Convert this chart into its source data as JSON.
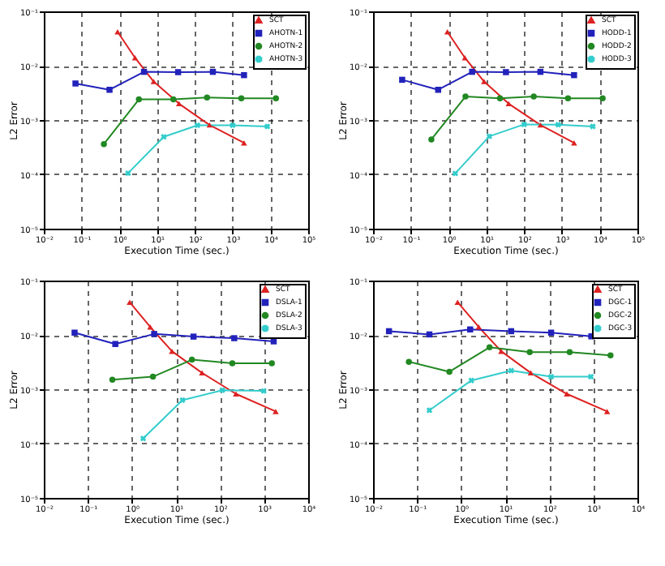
{
  "chart_data": [
    {
      "type": "line",
      "xlabel": "Execution Time (sec.)",
      "ylabel": "L2 Error",
      "log": "xy",
      "grid": true,
      "legend": "top right",
      "xlim": [
        0.01,
        100000
      ],
      "xticks": [
        {
          "value": 0.01,
          "label": "10⁻²"
        },
        {
          "value": 0.1,
          "label": "10⁻¹"
        },
        {
          "value": 1,
          "label": "10⁰"
        },
        {
          "value": 10,
          "label": "10¹"
        },
        {
          "value": 100,
          "label": "10²"
        },
        {
          "value": 1000,
          "label": "10³"
        },
        {
          "value": 10000,
          "label": "10⁴"
        },
        {
          "value": 100000,
          "label": "10⁵"
        }
      ],
      "ylim": [
        1e-05,
        0.1
      ],
      "yticks": [
        {
          "value": 1e-05,
          "label": "10⁻⁵"
        },
        {
          "value": 0.0001,
          "label": "10⁻⁴"
        },
        {
          "value": 0.001,
          "label": "10⁻³"
        },
        {
          "value": 0.01,
          "label": "10⁻²"
        },
        {
          "value": 0.1,
          "label": "10⁻¹"
        }
      ],
      "series": [
        {
          "name": "SCT",
          "color": "#dd2222",
          "marker": "triangle",
          "x": [
            0.9,
            2.6,
            8.1,
            38,
            245,
            2000
          ],
          "values": [
            0.042,
            0.014,
            0.0051,
            0.002,
            0.00081,
            0.00038
          ]
        },
        {
          "name": "AHOTN-1",
          "color": "#2222bb",
          "marker": "square",
          "x": [
            0.069,
            0.55,
            4.5,
            36,
            300,
            2000
          ],
          "values": [
            0.0047,
            0.0036,
            0.0077,
            0.0076,
            0.0077,
            0.0067
          ]
        },
        {
          "name": "AHOTN-2",
          "color": "#228822",
          "marker": "circle",
          "x": [
            0.39,
            3.3,
            27,
            210,
            1700,
            14000
          ],
          "values": [
            0.00036,
            0.0024,
            0.0024,
            0.0026,
            0.0025,
            0.0025
          ]
        },
        {
          "name": "AHOTN-3",
          "color": "#33cccc",
          "marker": "cross",
          "x": [
            1.7,
            15,
            117,
            1000,
            8300
          ],
          "values": [
            0.000105,
            0.00049,
            0.0008,
            0.0008,
            0.00076
          ]
        }
      ]
    },
    {
      "type": "line",
      "xlabel": "Execution Time (sec.)",
      "ylabel": "L2 Error",
      "log": "xy",
      "grid": true,
      "legend": "top right",
      "xlim": [
        0.01,
        100000
      ],
      "xticks": [
        {
          "value": 0.01,
          "label": "10⁻²"
        },
        {
          "value": 0.1,
          "label": "10⁻¹"
        },
        {
          "value": 1,
          "label": "10⁰"
        },
        {
          "value": 10,
          "label": "10¹"
        },
        {
          "value": 100,
          "label": "10²"
        },
        {
          "value": 1000,
          "label": "10³"
        },
        {
          "value": 10000,
          "label": "10⁴"
        },
        {
          "value": 100000,
          "label": "10⁵"
        }
      ],
      "ylim": [
        1e-05,
        0.1
      ],
      "yticks": [
        {
          "value": 1e-05,
          "label": "10⁻⁵"
        },
        {
          "value": 0.0001,
          "label": "10⁻⁴"
        },
        {
          "value": 0.001,
          "label": "10⁻³"
        },
        {
          "value": 0.01,
          "label": "10⁻²"
        },
        {
          "value": 0.1,
          "label": "10⁻¹"
        }
      ],
      "series": [
        {
          "name": "SCT",
          "color": "#dd2222",
          "marker": "triangle",
          "x": [
            0.93,
            2.7,
            8.7,
            39,
            270,
            2100
          ],
          "values": [
            0.042,
            0.014,
            0.0051,
            0.002,
            0.00081,
            0.00038
          ]
        },
        {
          "name": "HODD-1",
          "color": "#2222bb",
          "marker": "square",
          "x": [
            0.059,
            0.53,
            4.2,
            33,
            270,
            2100
          ],
          "values": [
            0.0055,
            0.0036,
            0.0077,
            0.0076,
            0.0077,
            0.0067
          ]
        },
        {
          "name": "HODD-2",
          "color": "#228822",
          "marker": "circle",
          "x": [
            0.35,
            2.8,
            23,
            180,
            1450,
            12000
          ],
          "values": [
            0.00044,
            0.0027,
            0.0025,
            0.0027,
            0.0025,
            0.0025
          ]
        },
        {
          "name": "HODD-3",
          "color": "#33cccc",
          "marker": "cross",
          "x": [
            1.5,
            12,
            100,
            800,
            6600
          ],
          "values": [
            0.000104,
            0.0005,
            0.00083,
            0.00082,
            0.00076
          ]
        }
      ]
    },
    {
      "type": "line",
      "xlabel": "Execution Time (sec.)",
      "ylabel": "L2 Error",
      "log": "xy",
      "grid": true,
      "legend": "top right",
      "xlim": [
        0.01,
        10000
      ],
      "xticks": [
        {
          "value": 0.01,
          "label": "10⁻²"
        },
        {
          "value": 0.1,
          "label": "10⁻¹"
        },
        {
          "value": 1,
          "label": "10⁰"
        },
        {
          "value": 10,
          "label": "10¹"
        },
        {
          "value": 100,
          "label": "10²"
        },
        {
          "value": 1000,
          "label": "10³"
        },
        {
          "value": 10000,
          "label": "10⁴"
        }
      ],
      "ylim": [
        1e-05,
        0.1
      ],
      "yticks": [
        {
          "value": 1e-05,
          "label": "10⁻⁵"
        },
        {
          "value": 0.0001,
          "label": "10⁻⁴"
        },
        {
          "value": 0.001,
          "label": "10⁻³"
        },
        {
          "value": 0.01,
          "label": "10⁻²"
        },
        {
          "value": 0.1,
          "label": "10⁻¹"
        }
      ],
      "series": [
        {
          "name": "SCT",
          "color": "#dd2222",
          "marker": "triangle",
          "x": [
            0.89,
            2.6,
            8.1,
            39,
            230,
            1830
          ],
          "values": [
            0.04,
            0.014,
            0.005,
            0.002,
            0.00082,
            0.00039
          ]
        },
        {
          "name": "DSLA-1",
          "color": "#2222bb",
          "marker": "square",
          "x": [
            0.05,
            0.42,
            3.2,
            25,
            210,
            1650
          ],
          "values": [
            0.011,
            0.0068,
            0.0104,
            0.0093,
            0.0087,
            0.0076
          ]
        },
        {
          "name": "DSLA-2",
          "color": "#228822",
          "marker": "circle",
          "x": [
            0.36,
            3,
            23,
            190,
            1500
          ],
          "values": [
            0.0015,
            0.0017,
            0.0035,
            0.003,
            0.003
          ]
        },
        {
          "name": "DSLA-3",
          "color": "#33cccc",
          "marker": "cross",
          "x": [
            1.8,
            14,
            113,
            980
          ],
          "values": [
            0.000124,
            0.00063,
            0.00096,
            0.00093
          ]
        }
      ]
    },
    {
      "type": "line",
      "xlabel": "Execution Time (sec.)",
      "ylabel": "L2 Error",
      "log": "xy",
      "grid": true,
      "legend": "top right",
      "xlim": [
        0.01,
        10000
      ],
      "xticks": [
        {
          "value": 0.01,
          "label": "10⁻²"
        },
        {
          "value": 0.1,
          "label": "10⁻¹"
        },
        {
          "value": 1,
          "label": "10⁰"
        },
        {
          "value": 10,
          "label": "10¹"
        },
        {
          "value": 100,
          "label": "10²"
        },
        {
          "value": 1000,
          "label": "10³"
        },
        {
          "value": 10000,
          "label": "10⁴"
        }
      ],
      "ylim": [
        1e-05,
        0.1
      ],
      "yticks": [
        {
          "value": 1e-05,
          "label": "10⁻⁵"
        },
        {
          "value": 0.0001,
          "label": "10⁻⁴"
        },
        {
          "value": 0.001,
          "label": "10⁻³"
        },
        {
          "value": 0.01,
          "label": "10⁻²"
        },
        {
          "value": 0.1,
          "label": "10⁻¹"
        }
      ],
      "series": [
        {
          "name": "SCT",
          "color": "#dd2222",
          "marker": "triangle",
          "x": [
            0.83,
            2.5,
            8.1,
            38,
            250,
            2050
          ],
          "values": [
            0.04,
            0.014,
            0.005,
            0.002,
            0.00082,
            0.00039
          ]
        },
        {
          "name": "DGC-1",
          "color": "#2222bb",
          "marker": "square",
          "x": [
            0.023,
            0.19,
            1.6,
            13.6,
            110,
            900
          ],
          "values": [
            0.0117,
            0.0102,
            0.0126,
            0.0117,
            0.011,
            0.0094
          ]
        },
        {
          "name": "DGC-2",
          "color": "#228822",
          "marker": "circle",
          "x": [
            0.065,
            0.54,
            4.4,
            36,
            290,
            2450
          ],
          "values": [
            0.0032,
            0.0021,
            0.0059,
            0.0048,
            0.0048,
            0.0042
          ]
        },
        {
          "name": "DGC-3",
          "color": "#33cccc",
          "marker": "cross",
          "x": [
            0.19,
            1.7,
            13.6,
            110,
            880
          ],
          "values": [
            0.00041,
            0.00145,
            0.0022,
            0.0017,
            0.0017
          ]
        }
      ]
    }
  ]
}
